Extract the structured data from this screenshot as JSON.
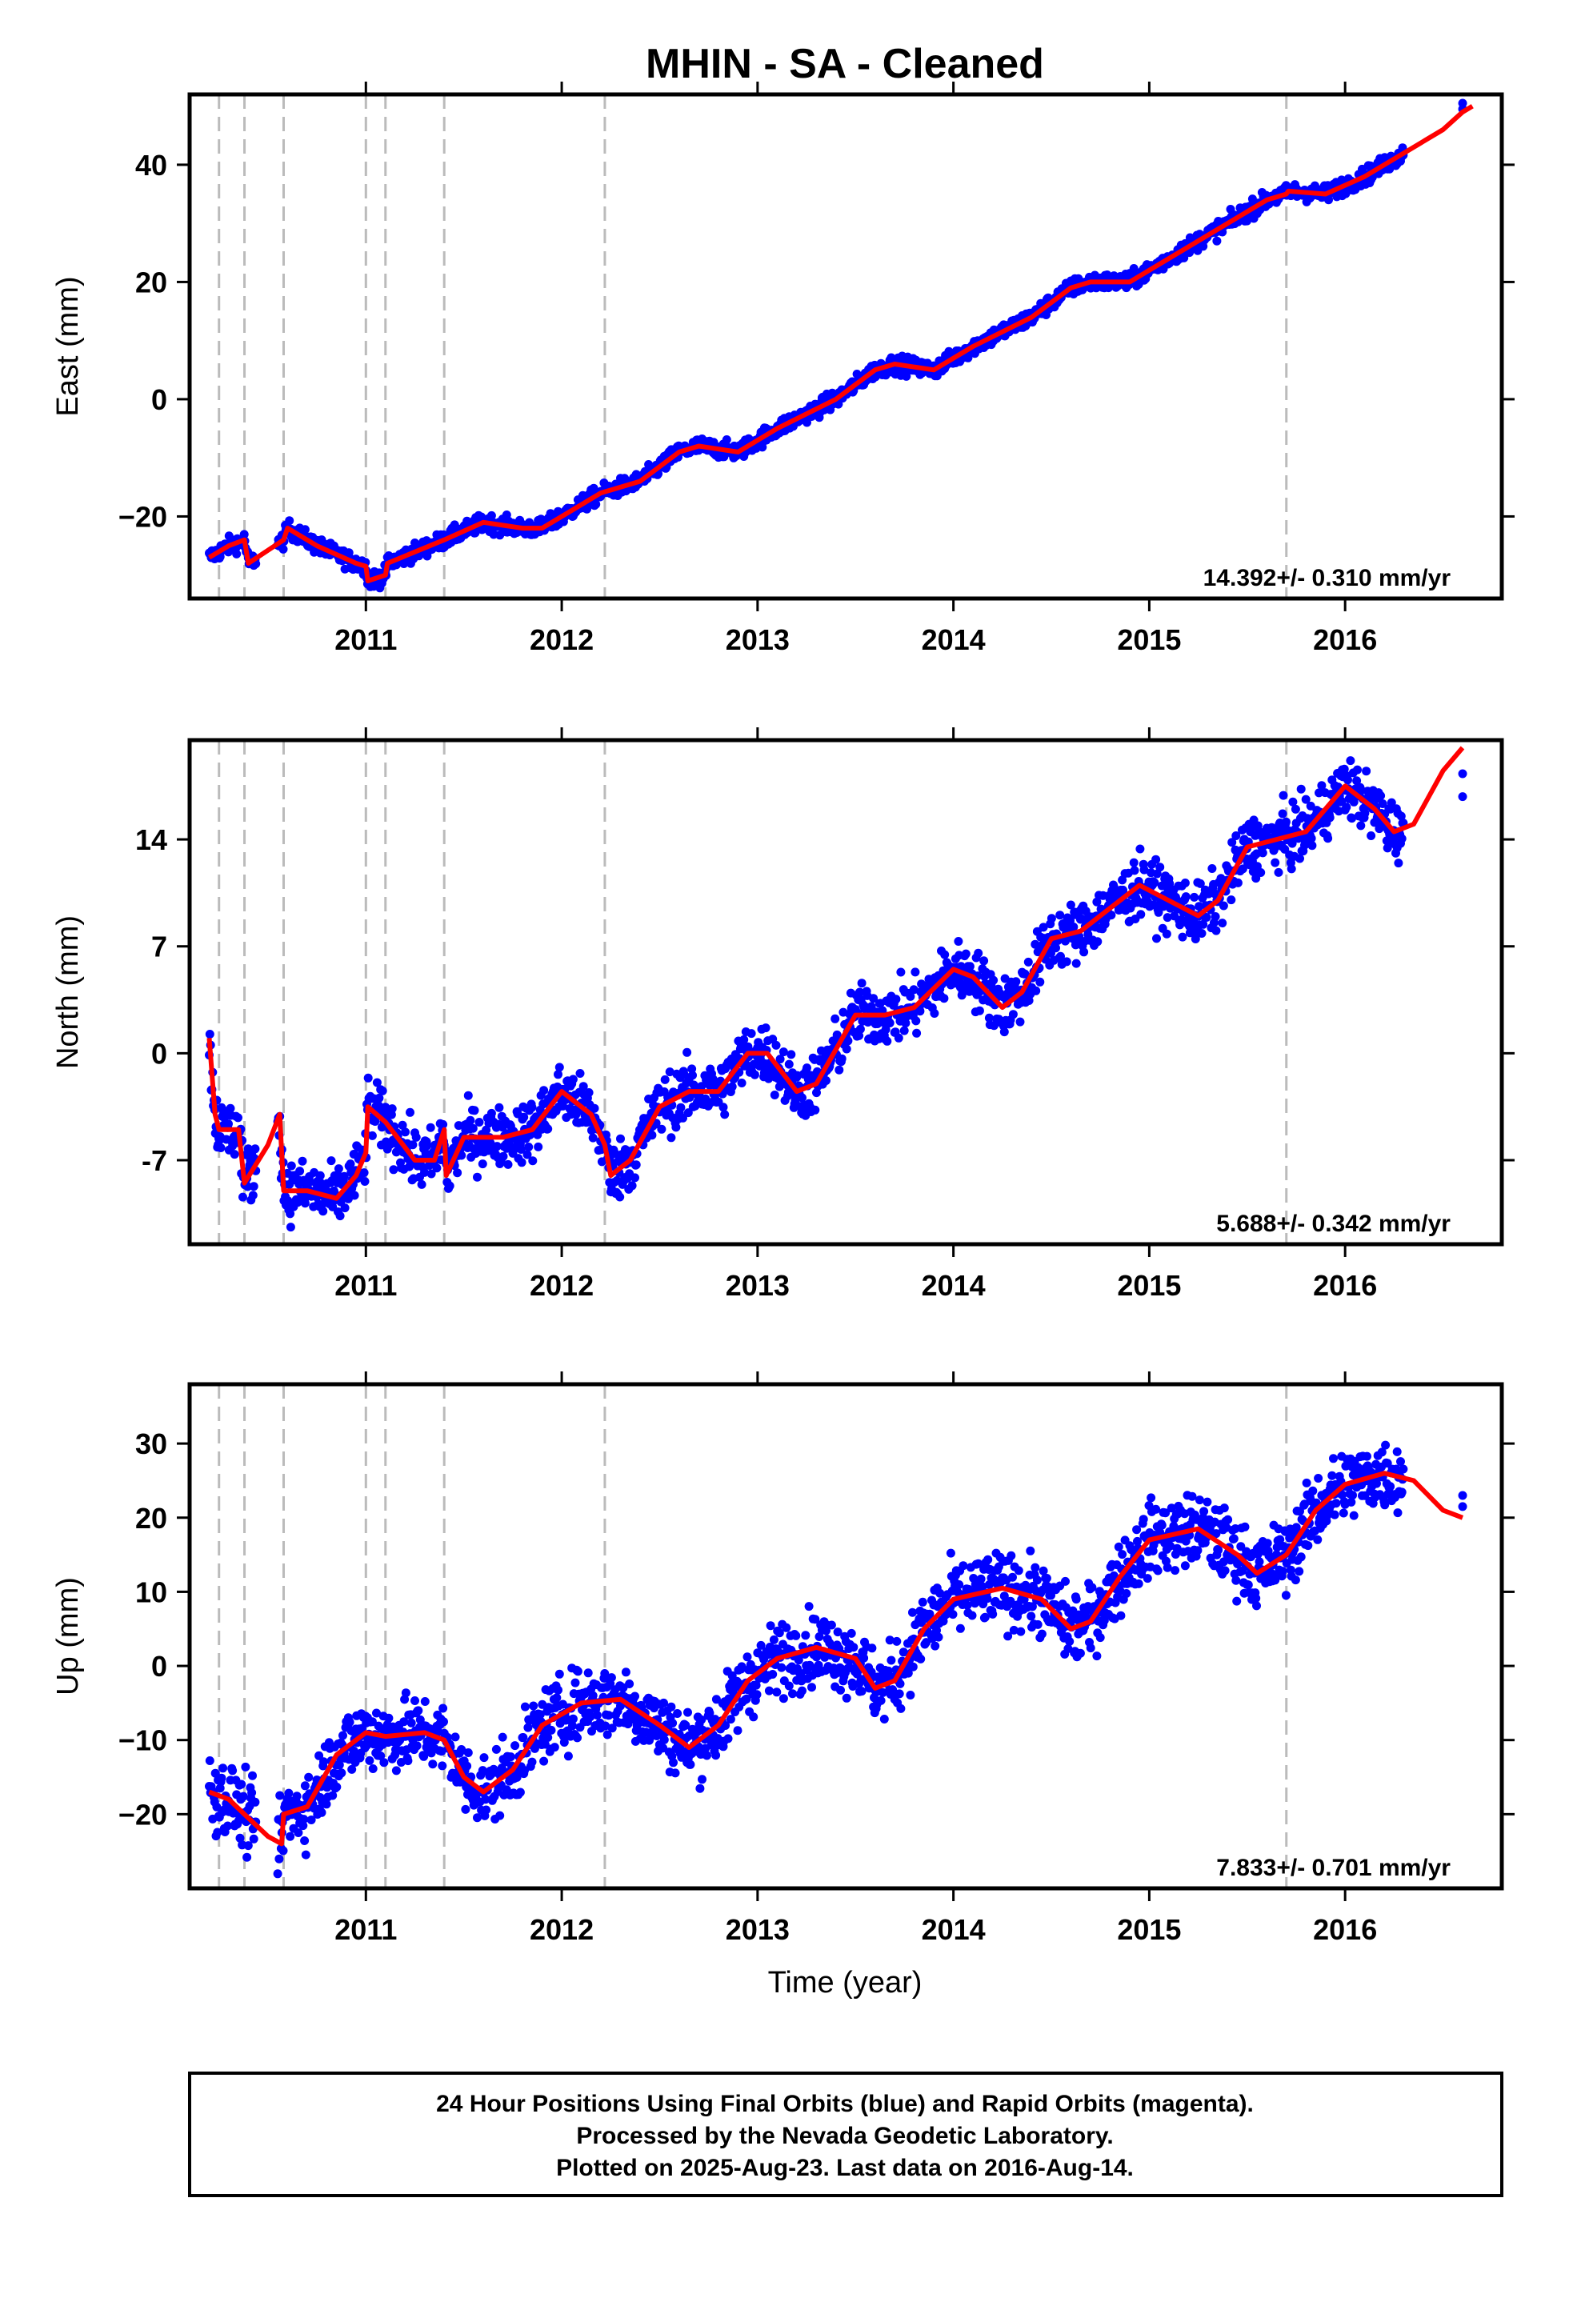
{
  "title": "MHIN  - SA - Cleaned",
  "colors": {
    "points": "#0000ff",
    "fit": "#ff0000",
    "breaks": "#bbbbbb",
    "frame": "#000000"
  },
  "xlabel": "Time (year)",
  "footer": {
    "line1": "24 Hour Positions Using Final Orbits (blue) and Rapid Orbits (magenta).",
    "line2": "Processed by the Nevada Geodetic Laboratory.",
    "line3": "Plotted on 2025-Aug-23. Last data on 2016-Aug-14."
  },
  "chart_data": [
    {
      "type": "scatter",
      "component": "East",
      "ylabel": "East (mm)",
      "rate": "14.392+/- 0.310 mm/yr",
      "xlim": [
        2010.1,
        2016.8
      ],
      "ylim": [
        -34,
        52
      ],
      "xticks": [
        "2011",
        "2012",
        "2013",
        "2014",
        "2015",
        "2016"
      ],
      "yticks": [
        "40",
        "20",
        "0",
        "−20"
      ],
      "ytick_values": [
        40,
        20,
        0,
        -20
      ],
      "noise": 1.2,
      "break_lines": [
        2010.25,
        2010.38,
        2010.58,
        2011.0,
        2011.1,
        2011.4,
        2012.22,
        2015.7
      ],
      "fit": [
        [
          2010.2,
          -27
        ],
        [
          2010.3,
          -25
        ],
        [
          2010.38,
          -24
        ],
        [
          2010.4,
          -28
        ],
        [
          2010.58,
          -24
        ],
        [
          2010.6,
          -22
        ],
        [
          2010.75,
          -25
        ],
        [
          2010.95,
          -28
        ],
        [
          2011.0,
          -28.5
        ],
        [
          2011.01,
          -31
        ],
        [
          2011.1,
          -30
        ],
        [
          2011.11,
          -28
        ],
        [
          2011.4,
          -24
        ],
        [
          2011.6,
          -21
        ],
        [
          2011.8,
          -22
        ],
        [
          2011.9,
          -22
        ],
        [
          2012.0,
          -20
        ],
        [
          2012.2,
          -16
        ],
        [
          2012.4,
          -14
        ],
        [
          2012.6,
          -9
        ],
        [
          2012.7,
          -8
        ],
        [
          2012.9,
          -9
        ],
        [
          2013.1,
          -5
        ],
        [
          2013.4,
          0
        ],
        [
          2013.6,
          5
        ],
        [
          2013.7,
          6
        ],
        [
          2013.9,
          5
        ],
        [
          2014.1,
          9
        ],
        [
          2014.4,
          14
        ],
        [
          2014.6,
          19
        ],
        [
          2014.7,
          20
        ],
        [
          2014.9,
          20
        ],
        [
          2015.1,
          24
        ],
        [
          2015.4,
          30
        ],
        [
          2015.6,
          34
        ],
        [
          2015.7,
          35
        ],
        [
          2015.71,
          35.5
        ],
        [
          2015.9,
          35
        ],
        [
          2016.1,
          38
        ],
        [
          2016.3,
          42
        ],
        [
          2016.5,
          46
        ],
        [
          2016.6,
          49
        ],
        [
          2016.65,
          50
        ]
      ],
      "observed_extent": [
        2010.2,
        2016.3
      ],
      "last_points": [
        [
          2016.6,
          50.5
        ],
        [
          2016.6,
          49.5
        ]
      ]
    },
    {
      "type": "scatter",
      "component": "North",
      "ylabel": "North (mm)",
      "rate": "5.688+/- 0.342 mm/yr",
      "xlim": [
        2010.1,
        2016.8
      ],
      "ylim": [
        -12.5,
        20.5
      ],
      "xticks": [
        "2011",
        "2012",
        "2013",
        "2014",
        "2015",
        "2016"
      ],
      "yticks": [
        "14",
        "7",
        "0",
        "-7"
      ],
      "ytick_values": [
        14,
        7,
        0,
        -7
      ],
      "noise": 1.6,
      "break_lines": [
        2010.25,
        2010.38,
        2010.58,
        2011.0,
        2011.1,
        2011.4,
        2012.22,
        2015.7
      ],
      "fit": [
        [
          2010.2,
          1
        ],
        [
          2010.23,
          -4
        ],
        [
          2010.25,
          -5
        ],
        [
          2010.3,
          -5
        ],
        [
          2010.35,
          -5
        ],
        [
          2010.38,
          -8.5
        ],
        [
          2010.5,
          -6
        ],
        [
          2010.56,
          -4
        ],
        [
          2010.58,
          -9
        ],
        [
          2010.7,
          -9
        ],
        [
          2010.85,
          -9.5
        ],
        [
          2010.95,
          -8
        ],
        [
          2011.0,
          -6.5
        ],
        [
          2011.01,
          -3.5
        ],
        [
          2011.1,
          -4.5
        ],
        [
          2011.25,
          -7
        ],
        [
          2011.35,
          -7
        ],
        [
          2011.4,
          -5
        ],
        [
          2011.41,
          -8
        ],
        [
          2011.5,
          -5.5
        ],
        [
          2011.7,
          -5.5
        ],
        [
          2011.85,
          -5
        ],
        [
          2012.0,
          -2.5
        ],
        [
          2012.15,
          -4
        ],
        [
          2012.22,
          -6
        ],
        [
          2012.25,
          -8
        ],
        [
          2012.35,
          -7
        ],
        [
          2012.5,
          -3.5
        ],
        [
          2012.65,
          -2.5
        ],
        [
          2012.8,
          -2.5
        ],
        [
          2012.95,
          0
        ],
        [
          2013.05,
          0
        ],
        [
          2013.2,
          -2.5
        ],
        [
          2013.3,
          -2
        ],
        [
          2013.5,
          2.5
        ],
        [
          2013.65,
          2.5
        ],
        [
          2013.8,
          3
        ],
        [
          2014.0,
          5.5
        ],
        [
          2014.1,
          5
        ],
        [
          2014.25,
          3
        ],
        [
          2014.35,
          4
        ],
        [
          2014.5,
          7.5
        ],
        [
          2014.65,
          8
        ],
        [
          2014.8,
          9.5
        ],
        [
          2014.95,
          11
        ],
        [
          2015.1,
          10
        ],
        [
          2015.25,
          9
        ],
        [
          2015.35,
          10
        ],
        [
          2015.5,
          13.5
        ],
        [
          2015.65,
          14
        ],
        [
          2015.8,
          14.5
        ],
        [
          2016.0,
          17.5
        ],
        [
          2016.15,
          16
        ],
        [
          2016.25,
          14.5
        ],
        [
          2016.35,
          15
        ],
        [
          2016.5,
          18.5
        ],
        [
          2016.6,
          20
        ]
      ],
      "observed_extent": [
        2010.2,
        2016.3
      ],
      "last_points": [
        [
          2016.6,
          18.3
        ],
        [
          2016.6,
          16.8
        ]
      ]
    },
    {
      "type": "scatter",
      "component": "Up",
      "ylabel": "Up (mm)",
      "rate": "7.833+/- 0.701 mm/yr",
      "xlim": [
        2010.1,
        2016.8
      ],
      "ylim": [
        -30,
        38
      ],
      "xticks": [
        "2011",
        "2012",
        "2013",
        "2014",
        "2015",
        "2016"
      ],
      "yticks": [
        "30",
        "20",
        "10",
        "0",
        "−10",
        "−20"
      ],
      "ytick_values": [
        30,
        20,
        10,
        0,
        -10,
        -20
      ],
      "noise": 4.0,
      "break_lines": [
        2010.25,
        2010.38,
        2010.58,
        2011.0,
        2011.1,
        2011.4,
        2012.22,
        2015.7
      ],
      "fit": [
        [
          2010.2,
          -17
        ],
        [
          2010.3,
          -18
        ],
        [
          2010.38,
          -20
        ],
        [
          2010.5,
          -23
        ],
        [
          2010.57,
          -24
        ],
        [
          2010.58,
          -20
        ],
        [
          2010.7,
          -19
        ],
        [
          2010.85,
          -12
        ],
        [
          2011.0,
          -9
        ],
        [
          2011.1,
          -9.5
        ],
        [
          2011.3,
          -9
        ],
        [
          2011.4,
          -10
        ],
        [
          2011.5,
          -15
        ],
        [
          2011.6,
          -17
        ],
        [
          2011.75,
          -14
        ],
        [
          2011.9,
          -8
        ],
        [
          2012.1,
          -5
        ],
        [
          2012.3,
          -4.5
        ],
        [
          2012.5,
          -8
        ],
        [
          2012.65,
          -11
        ],
        [
          2012.8,
          -8
        ],
        [
          2012.95,
          -2
        ],
        [
          2013.1,
          1
        ],
        [
          2013.3,
          2.5
        ],
        [
          2013.5,
          1
        ],
        [
          2013.6,
          -3
        ],
        [
          2013.7,
          -2
        ],
        [
          2013.85,
          5
        ],
        [
          2014.0,
          9
        ],
        [
          2014.25,
          10.5
        ],
        [
          2014.45,
          9
        ],
        [
          2014.6,
          5
        ],
        [
          2014.7,
          6
        ],
        [
          2014.85,
          12
        ],
        [
          2015.0,
          17
        ],
        [
          2015.25,
          18.5
        ],
        [
          2015.45,
          15
        ],
        [
          2015.55,
          12.5
        ],
        [
          2015.7,
          15
        ],
        [
          2015.85,
          21
        ],
        [
          2016.0,
          24.5
        ],
        [
          2016.2,
          26
        ],
        [
          2016.35,
          25
        ],
        [
          2016.5,
          21
        ],
        [
          2016.6,
          20
        ]
      ],
      "observed_extent": [
        2010.2,
        2016.3
      ],
      "last_points": [
        [
          2016.6,
          23
        ],
        [
          2016.6,
          21.5
        ]
      ]
    }
  ]
}
